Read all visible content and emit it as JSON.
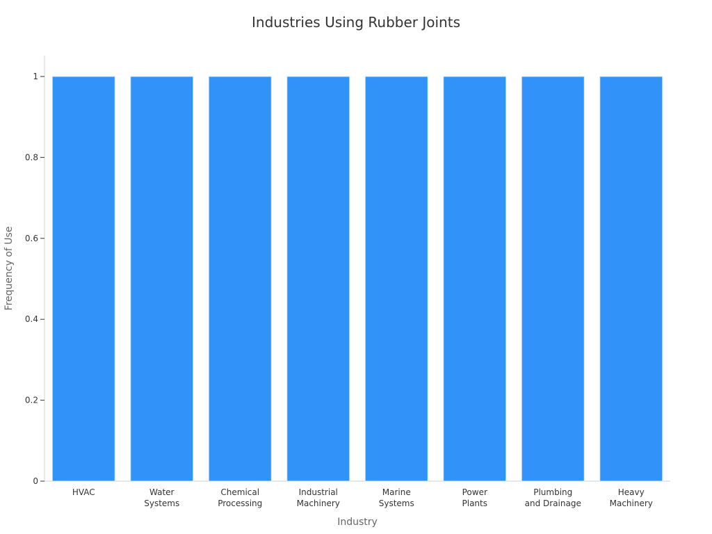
{
  "chart_data": {
    "type": "bar",
    "title": "Industries Using Rubber Joints",
    "xlabel": "Industry",
    "ylabel": "Frequency of Use",
    "categories": [
      [
        "HVAC"
      ],
      [
        "Water",
        "Systems"
      ],
      [
        "Chemical",
        "Processing"
      ],
      [
        "Industrial",
        "Machinery"
      ],
      [
        "Marine",
        "Systems"
      ],
      [
        "Power",
        "Plants"
      ],
      [
        "Plumbing",
        "and Drainage"
      ],
      [
        "Heavy",
        "Machinery"
      ]
    ],
    "values": [
      1,
      1,
      1,
      1,
      1,
      1,
      1,
      1
    ],
    "ylim": [
      0,
      1
    ],
    "yticks": [
      "0",
      "0.2",
      "0.4",
      "0.6",
      "0.8",
      "1"
    ],
    "grid": false,
    "bar_color": "#3193f8",
    "bar_edge_color": "#d6e8fb"
  }
}
